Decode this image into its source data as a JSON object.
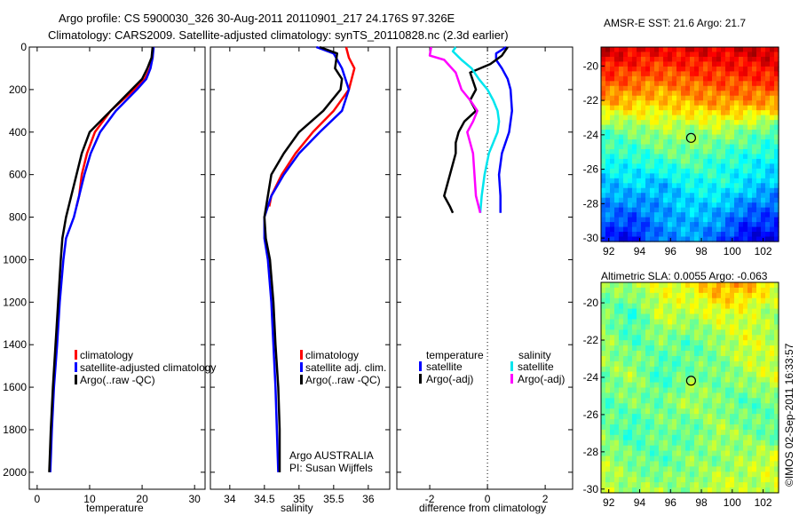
{
  "title_line1": "Argo profile: CS 5900030_326 30-Aug-2011 20110901_217 24.176S 97.326E",
  "title_line2": "Climatology: CARS2009. Satellite-adjusted climatology: synTS_20110828.nc (2.3d earlier)",
  "credit": "©IMOS 02-Sep-2011 16:33:57",
  "chart_data": [
    {
      "type": "line",
      "id": "temperature",
      "xlabel": "temperature",
      "ylabel": "",
      "xlim": [
        -1.5,
        32
      ],
      "ylim": [
        0,
        2080
      ],
      "y_reversed": true,
      "xticks": [
        0,
        10,
        20,
        30
      ],
      "yticks": [
        0,
        200,
        400,
        600,
        800,
        1000,
        1200,
        1400,
        1600,
        1800,
        2000
      ],
      "legend": [
        "climatology",
        "satellite-adjusted climatology",
        "Argo(..raw -QC)"
      ],
      "series": [
        {
          "name": "climatology",
          "color": "#ff0000",
          "depth": [
            0,
            50,
            100,
            150,
            200,
            300,
            400,
            500,
            600,
            700,
            750
          ],
          "values": [
            22,
            22,
            21.5,
            20.5,
            18.5,
            14,
            11,
            9.5,
            8.5,
            8,
            7.5
          ]
        },
        {
          "name": "satellite-adjusted climatology",
          "color": "#0000ff",
          "depth": [
            0,
            50,
            100,
            150,
            200,
            300,
            400,
            500,
            600,
            700,
            800,
            900,
            1000,
            1200,
            1400,
            1600,
            1800,
            2000
          ],
          "values": [
            22.2,
            22,
            21.6,
            20.8,
            19,
            15,
            12,
            10.2,
            9,
            8,
            7,
            5.5,
            5,
            4.3,
            3.8,
            3.2,
            2.8,
            2.5
          ]
        },
        {
          "name": "Argo(..raw -QC)",
          "color": "#000000",
          "depth": [
            0,
            50,
            100,
            150,
            200,
            300,
            400,
            500,
            600,
            700,
            800,
            900,
            1000,
            1200,
            1400,
            1600,
            1800,
            2000
          ],
          "values": [
            22,
            21.8,
            21,
            20,
            18,
            14,
            10,
            8.5,
            7.5,
            6.5,
            5.5,
            4.8,
            4.5,
            4,
            3.5,
            3,
            2.6,
            2.3
          ]
        }
      ]
    },
    {
      "type": "line",
      "id": "salinity",
      "xlabel": "salinity",
      "xlim": [
        33.72,
        36.31
      ],
      "ylim": [
        0,
        2080
      ],
      "y_reversed": true,
      "xticks": [
        34,
        34.5,
        35,
        35.5,
        36
      ],
      "legend": [
        "climatology",
        "satellite adj. clim.",
        "Argo(..raw -QC)"
      ],
      "annotation": [
        "Argo AUSTRALIA",
        "PI: Susan Wijffels"
      ],
      "series": [
        {
          "name": "climatology",
          "color": "#ff0000",
          "depth": [
            0,
            50,
            100,
            200,
            300,
            400,
            500,
            600,
            700,
            750
          ],
          "values": [
            35.68,
            35.72,
            35.8,
            35.72,
            35.5,
            35.2,
            34.95,
            34.75,
            34.6,
            34.57
          ]
        },
        {
          "name": "satellite adj. clim.",
          "color": "#0000ff",
          "depth": [
            0,
            30,
            100,
            200,
            300,
            400,
            500,
            600,
            700,
            800,
            900,
            1000,
            1200,
            1400,
            1600,
            1800,
            2000
          ],
          "values": [
            35.25,
            35.5,
            35.62,
            35.72,
            35.62,
            35.3,
            35.0,
            34.78,
            34.6,
            34.5,
            34.5,
            34.55,
            34.6,
            34.63,
            34.66,
            34.68,
            34.7
          ]
        },
        {
          "name": "Argo(..raw -QC)",
          "color": "#000000",
          "depth": [
            0,
            30,
            100,
            150,
            200,
            300,
            400,
            500,
            600,
            700,
            800,
            900,
            1000,
            1200,
            1400,
            1600,
            1800,
            2000
          ],
          "values": [
            35.3,
            35.55,
            35.52,
            35.62,
            35.6,
            35.35,
            35.0,
            34.78,
            34.6,
            34.55,
            34.5,
            34.52,
            34.58,
            34.63,
            34.66,
            34.7,
            34.72,
            34.72
          ]
        }
      ]
    },
    {
      "type": "line",
      "id": "difference",
      "xlabel": "difference from climatology",
      "xlim": [
        -3.14,
        2.95
      ],
      "ylim": [
        0,
        2080
      ],
      "y_reversed": true,
      "xticks": [
        -2,
        0,
        2
      ],
      "legend_headers": [
        "temperature",
        "salinity"
      ],
      "legend": [
        "satellite",
        "Argo(-adj)",
        "satellite",
        "Argo(-adj)"
      ],
      "series": [
        {
          "name": "temperature satellite",
          "color": "#0000ff",
          "depth": [
            0,
            30,
            60,
            100,
            150,
            200,
            300,
            400,
            500,
            600,
            700,
            780
          ],
          "values": [
            0.65,
            0.3,
            0.3,
            0.5,
            0.7,
            0.8,
            0.85,
            0.75,
            0.5,
            0.4,
            0.45,
            0.45
          ]
        },
        {
          "name": "temperature Argo(-adj)",
          "color": "#000000",
          "depth": [
            0,
            40,
            80,
            120,
            200,
            250,
            300,
            350,
            400,
            450,
            500,
            550,
            600,
            650,
            700,
            750,
            780
          ],
          "values": [
            0.7,
            0.5,
            0.1,
            -0.6,
            -0.4,
            -0.6,
            -0.4,
            -0.8,
            -1.0,
            -1.1,
            -1.1,
            -1.2,
            -1.3,
            -1.4,
            -1.5,
            -1.3,
            -1.2
          ]
        },
        {
          "name": "salinity satellite",
          "color": "#00e5ee",
          "depth": [
            0,
            20,
            60,
            100,
            150,
            200,
            250,
            300,
            350,
            400,
            450,
            500,
            600,
            700,
            780
          ],
          "values": [
            -1.1,
            -1.2,
            -0.9,
            -0.55,
            -0.3,
            0.0,
            0.2,
            0.35,
            0.4,
            0.35,
            0.2,
            0.05,
            -0.1,
            -0.2,
            -0.25
          ]
        },
        {
          "name": "salinity Argo(-adj)",
          "color": "#ff00ff",
          "depth": [
            0,
            40,
            60,
            120,
            200,
            250,
            300,
            350,
            400,
            450,
            500,
            600,
            700,
            780
          ],
          "values": [
            -1.95,
            -2.0,
            -1.5,
            -1.1,
            -0.9,
            -0.6,
            -0.35,
            -0.5,
            -0.7,
            -0.6,
            -0.5,
            -0.45,
            -0.4,
            -0.25
          ]
        }
      ]
    },
    {
      "type": "heatmap",
      "id": "sst-map",
      "title": "AMSR-E SST: 21.6 Argo: 21.7",
      "xlim": [
        91.5,
        103
      ],
      "ylim": [
        -30.2,
        -18.9
      ],
      "xticks": [
        92,
        94,
        96,
        98,
        100,
        102
      ],
      "yticks": [
        -20,
        -22,
        -24,
        -26,
        -28,
        -30
      ],
      "marker": {
        "lon": 97.33,
        "lat": -24.18
      },
      "grid_note": "normalized colour index 0-1 (rows north to south)",
      "grid": [
        [
          0.92,
          0.9,
          0.88,
          0.9,
          0.9,
          0.92,
          0.93
        ],
        [
          0.82,
          0.8,
          0.78,
          0.8,
          0.82,
          0.83,
          0.85
        ],
        [
          0.7,
          0.68,
          0.66,
          0.7,
          0.72,
          0.72,
          0.72
        ],
        [
          0.45,
          0.5,
          0.55,
          0.52,
          0.55,
          0.5,
          0.45
        ],
        [
          0.42,
          0.4,
          0.45,
          0.48,
          0.42,
          0.4,
          0.38
        ],
        [
          0.3,
          0.35,
          0.3,
          0.38,
          0.4,
          0.35,
          0.3
        ],
        [
          0.25,
          0.22,
          0.28,
          0.32,
          0.3,
          0.22,
          0.2
        ],
        [
          0.15,
          0.12,
          0.25,
          0.28,
          0.22,
          0.1,
          0.12
        ]
      ]
    },
    {
      "type": "heatmap",
      "id": "sla-map",
      "title": "Altimetric SLA: 0.0055 Argo: -0.063",
      "xlim": [
        91.5,
        103
      ],
      "ylim": [
        -30.2,
        -18.9
      ],
      "xticks": [
        92,
        94,
        96,
        98,
        100,
        102
      ],
      "yticks": [
        -20,
        -22,
        -24,
        -26,
        -28,
        -30
      ],
      "marker": {
        "lon": 97.33,
        "lat": -24.18
      },
      "grid": [
        [
          0.5,
          0.55,
          0.6,
          0.62,
          0.72,
          0.7,
          0.62
        ],
        [
          0.5,
          0.42,
          0.58,
          0.55,
          0.6,
          0.58,
          0.52
        ],
        [
          0.55,
          0.45,
          0.5,
          0.45,
          0.52,
          0.6,
          0.55
        ],
        [
          0.5,
          0.55,
          0.42,
          0.5,
          0.48,
          0.55,
          0.6
        ],
        [
          0.45,
          0.5,
          0.48,
          0.55,
          0.5,
          0.45,
          0.5
        ],
        [
          0.5,
          0.42,
          0.5,
          0.45,
          0.55,
          0.5,
          0.45
        ],
        [
          0.55,
          0.5,
          0.45,
          0.52,
          0.5,
          0.55,
          0.6
        ],
        [
          0.58,
          0.52,
          0.55,
          0.5,
          0.6,
          0.55,
          0.58
        ]
      ]
    }
  ]
}
